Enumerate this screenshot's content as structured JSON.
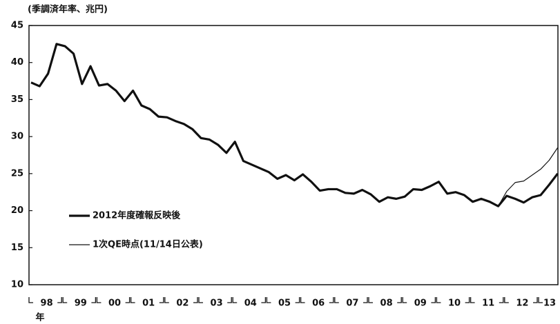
{
  "chart_data": {
    "type": "line",
    "unit_label": "(季調済年率、兆円)",
    "year_labels": [
      "98",
      "99",
      "00",
      "01",
      "02",
      "03",
      "04",
      "05",
      "06",
      "07",
      "08",
      "09",
      "10",
      "11",
      "12",
      "13"
    ],
    "year_suffix": "年",
    "ylim": [
      10,
      45
    ],
    "yticks": [
      10,
      15,
      20,
      25,
      30,
      35,
      40,
      45
    ],
    "series": [
      {
        "name": "2012年度確報反映後",
        "color": "#111111",
        "width": 3.2,
        "values": [
          37.3,
          36.8,
          38.5,
          42.5,
          42.2,
          41.2,
          37.1,
          39.5,
          36.9,
          37.1,
          36.2,
          34.8,
          36.2,
          34.2,
          33.7,
          32.7,
          32.6,
          32.1,
          31.7,
          31.0,
          29.8,
          29.6,
          28.9,
          27.8,
          29.3,
          26.7,
          26.2,
          25.7,
          25.2,
          24.3,
          24.8,
          24.1,
          24.9,
          23.9,
          22.7,
          22.9,
          22.9,
          22.4,
          22.3,
          22.8,
          22.2,
          21.2,
          21.8,
          21.6,
          21.9,
          22.9,
          22.8,
          23.3,
          23.9,
          22.3,
          22.5,
          22.1,
          21.2,
          21.6,
          21.2,
          20.6,
          22.0,
          21.6,
          21.1,
          21.8,
          22.1,
          23.5,
          25.0
        ]
      },
      {
        "name": "1次QE時点(11/14日公表)",
        "color": "#111111",
        "width": 1.2,
        "values": [
          37.3,
          36.8,
          38.5,
          42.5,
          42.2,
          41.2,
          37.1,
          39.5,
          36.9,
          37.1,
          36.2,
          34.8,
          36.2,
          34.2,
          33.7,
          32.7,
          32.6,
          32.1,
          31.7,
          31.0,
          29.8,
          29.6,
          28.9,
          27.8,
          29.3,
          26.7,
          26.2,
          25.7,
          25.2,
          24.3,
          24.8,
          24.1,
          24.9,
          23.9,
          22.7,
          22.9,
          22.9,
          22.4,
          22.3,
          22.8,
          22.2,
          21.2,
          21.8,
          21.6,
          21.9,
          22.9,
          22.8,
          23.3,
          23.9,
          22.3,
          22.5,
          22.1,
          21.2,
          21.6,
          21.2,
          20.6,
          22.6,
          23.8,
          24.0,
          24.8,
          25.6,
          26.8,
          28.5
        ]
      }
    ]
  }
}
